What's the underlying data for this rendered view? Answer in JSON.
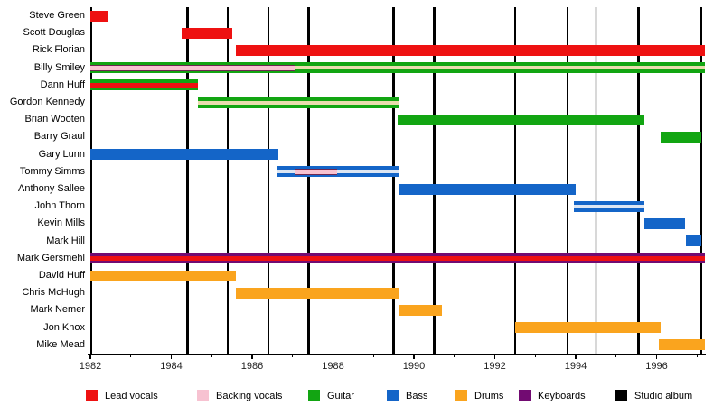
{
  "page": {
    "background": "#ffffff"
  },
  "chart_data": {
    "type": "bar",
    "variant": "band-members-timeline",
    "title": "",
    "xlabel": "",
    "ylabel": "",
    "x_range": {
      "start": 1982.0,
      "end": 1997.2
    },
    "x_tick_label_years": [
      1982,
      1984,
      1986,
      1988,
      1990,
      1992,
      1994,
      1996
    ],
    "studio_album_years": [
      1982.02,
      1984.4,
      1985.4,
      1986.4,
      1987.4,
      1989.5,
      1990.5,
      1992.5,
      1993.8,
      1995.55,
      1997.1
    ],
    "other_release_years": [
      1994.5
    ],
    "legend": [
      {
        "label": "Lead vocals",
        "role": "lead_vocals"
      },
      {
        "label": "Backing vocals",
        "role": "backing_vocals"
      },
      {
        "label": "Guitar",
        "role": "guitar"
      },
      {
        "label": "Bass",
        "role": "bass"
      },
      {
        "label": "Drums",
        "role": "drums"
      },
      {
        "label": "Keyboards",
        "role": "keyboards"
      },
      {
        "label": "Studio album",
        "role": "studio_album"
      }
    ],
    "palette": {
      "lead_vocals": "#ee1111",
      "backing_vocals": "#f7c2d1",
      "guitar": "#12a512",
      "bass": "#1465c8",
      "drums": "#faa41e",
      "keyboards": "#720b72",
      "studio_album": "#000000",
      "stripe_red": "#ee1111",
      "stripe_cream": "#e9dcae",
      "stripe_pale_blue": "#dde6f3",
      "stripe_pink": "#f7c2d1",
      "stripe_pink_border": "#6e2750",
      "other_release_line": "#d8d8d8",
      "axis": "#000000"
    },
    "members": [
      {
        "name": "Steve Green",
        "bars": [
          {
            "role": "lead_vocals",
            "start": 1982.0,
            "end": 1982.45
          }
        ]
      },
      {
        "name": "Scott Douglas",
        "bars": [
          {
            "role": "lead_vocals",
            "start": 1984.25,
            "end": 1985.5
          }
        ]
      },
      {
        "name": "Rick Florian",
        "bars": [
          {
            "role": "lead_vocals",
            "start": 1985.6,
            "end": 1997.2
          }
        ]
      },
      {
        "name": "Billy Smiley",
        "bars": [
          {
            "role": "guitar",
            "start": 1982.0,
            "end": 1997.2
          }
        ],
        "stripes": [
          {
            "style": "pink_bordered",
            "start": 1982.0,
            "end": 1987.05
          },
          {
            "style": "cream",
            "start": 1987.05,
            "end": 1997.2
          }
        ]
      },
      {
        "name": "Dann Huff",
        "bars": [
          {
            "role": "guitar",
            "start": 1982.0,
            "end": 1984.65
          }
        ],
        "stripes": [
          {
            "style": "red",
            "start": 1982.0,
            "end": 1984.65
          }
        ]
      },
      {
        "name": "Gordon Kennedy",
        "bars": [
          {
            "role": "guitar",
            "start": 1984.65,
            "end": 1989.65
          }
        ],
        "stripes": [
          {
            "style": "cream",
            "start": 1984.65,
            "end": 1989.65
          }
        ]
      },
      {
        "name": "Brian Wooten",
        "bars": [
          {
            "role": "guitar",
            "start": 1989.6,
            "end": 1995.7
          }
        ]
      },
      {
        "name": "Barry Graul",
        "bars": [
          {
            "role": "guitar",
            "start": 1996.1,
            "end": 1997.1
          }
        ]
      },
      {
        "name": "Gary Lunn",
        "bars": [
          {
            "role": "bass",
            "start": 1982.0,
            "end": 1986.65
          }
        ]
      },
      {
        "name": "Tommy Simms",
        "bars": [
          {
            "role": "bass",
            "start": 1986.6,
            "end": 1989.65
          }
        ],
        "stripes": [
          {
            "style": "pale_blue",
            "start": 1986.6,
            "end": 1989.65
          },
          {
            "style": "pink_bordered",
            "start": 1987.05,
            "end": 1988.1
          }
        ]
      },
      {
        "name": "Anthony Sallee",
        "bars": [
          {
            "role": "bass",
            "start": 1989.65,
            "end": 1994.0
          }
        ]
      },
      {
        "name": "John Thorn",
        "bars": [
          {
            "role": "bass",
            "start": 1993.95,
            "end": 1995.7
          }
        ],
        "stripes": [
          {
            "style": "pale_blue",
            "start": 1993.95,
            "end": 1995.7
          }
        ]
      },
      {
        "name": "Kevin Mills",
        "bars": [
          {
            "role": "bass",
            "start": 1995.7,
            "end": 1996.7
          }
        ]
      },
      {
        "name": "Mark Hill",
        "bars": [
          {
            "role": "bass",
            "start": 1996.73,
            "end": 1997.1
          }
        ]
      },
      {
        "name": "Mark Gersmehl",
        "bars": [
          {
            "role": "keyboards",
            "start": 1982.0,
            "end": 1997.2
          }
        ],
        "stripes": [
          {
            "style": "red",
            "start": 1982.0,
            "end": 1997.2
          }
        ]
      },
      {
        "name": "David Huff",
        "bars": [
          {
            "role": "drums",
            "start": 1982.0,
            "end": 1985.6
          }
        ]
      },
      {
        "name": "Chris McHugh",
        "bars": [
          {
            "role": "drums",
            "start": 1985.6,
            "end": 1989.65
          }
        ]
      },
      {
        "name": "Mark Nemer",
        "bars": [
          {
            "role": "drums",
            "start": 1989.65,
            "end": 1990.7
          }
        ]
      },
      {
        "name": "Jon Knox",
        "bars": [
          {
            "role": "drums",
            "start": 1992.5,
            "end": 1996.1
          }
        ]
      },
      {
        "name": "Mike Mead",
        "bars": [
          {
            "role": "drums",
            "start": 1996.05,
            "end": 1997.2
          }
        ]
      }
    ]
  }
}
